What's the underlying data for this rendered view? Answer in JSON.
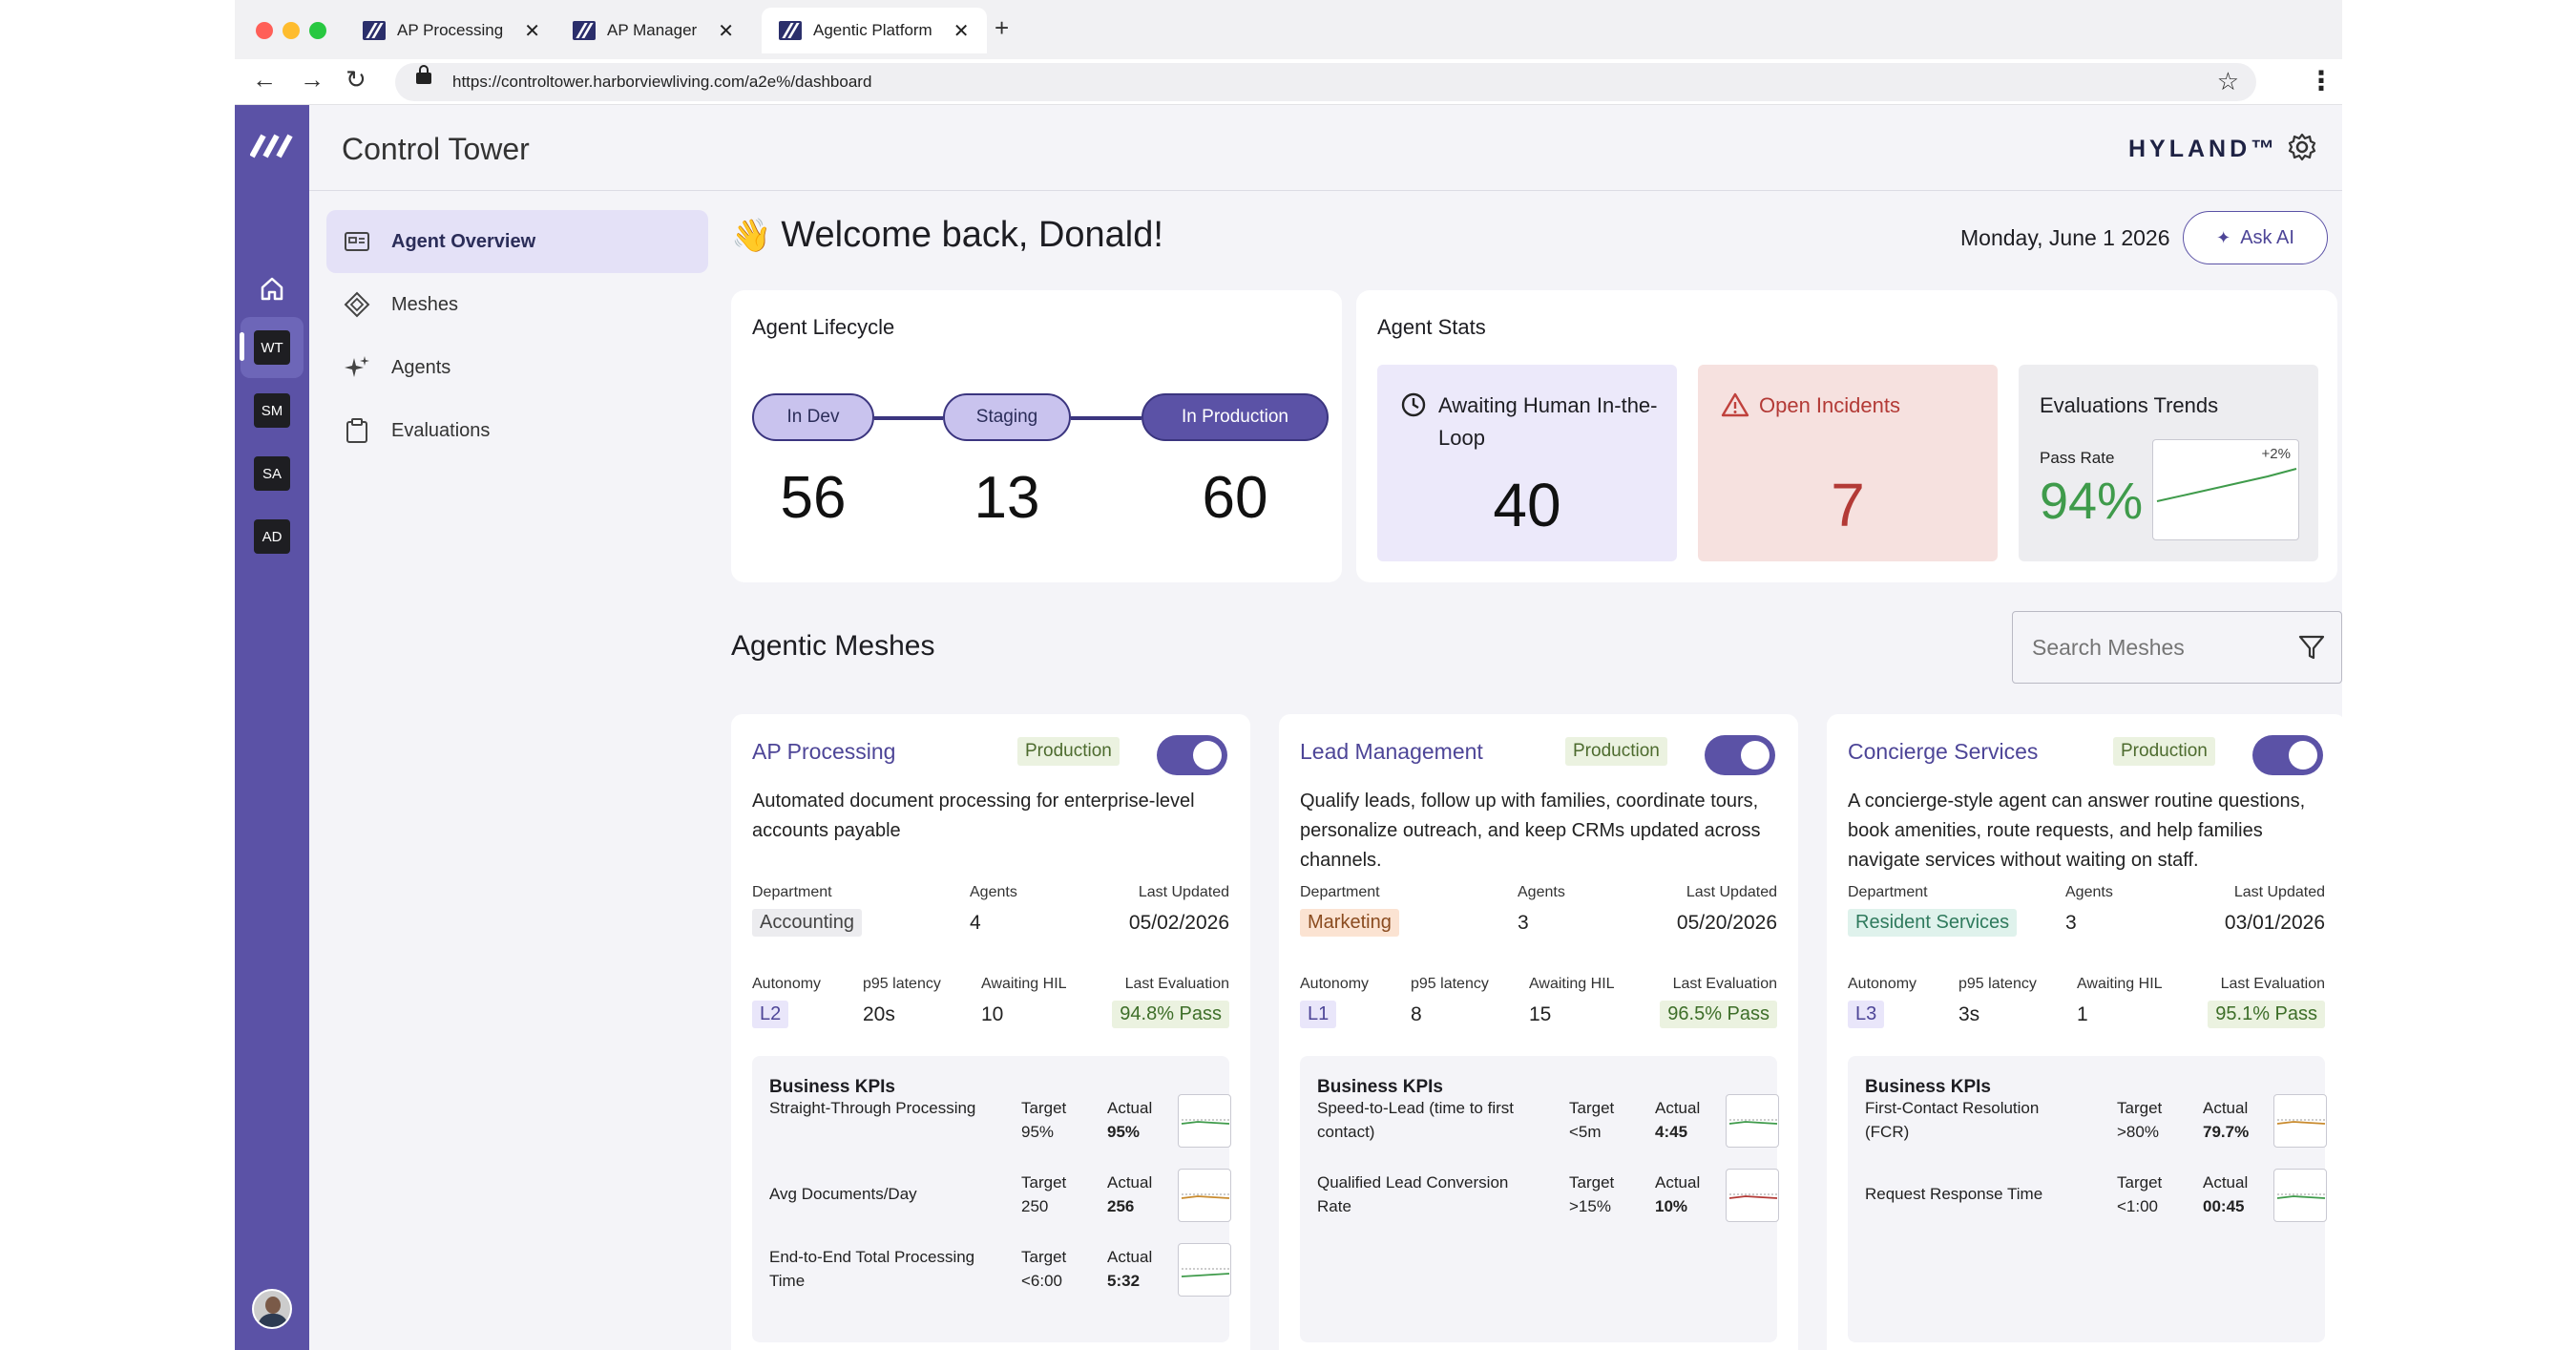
{
  "browser": {
    "tabs": [
      {
        "label": "AP Processing"
      },
      {
        "label": "AP Manager"
      },
      {
        "label": "Agentic Platform"
      }
    ],
    "url": "https://controltower.harborviewliving.com/a2e%/dashboard"
  },
  "rail": {
    "badges": [
      "WT",
      "SM",
      "SA",
      "AD"
    ]
  },
  "header": {
    "title": "Control Tower",
    "brand": "HYLAND™"
  },
  "subnav": {
    "items": [
      {
        "label": "Agent Overview",
        "icon": "dashboard-icon"
      },
      {
        "label": "Meshes",
        "icon": "mesh-icon"
      },
      {
        "label": "Agents",
        "icon": "sparkle-icon"
      },
      {
        "label": "Evaluations",
        "icon": "clipboard-icon"
      }
    ]
  },
  "main": {
    "welcome": "Welcome back, Donald!",
    "wave_emoji": "👋",
    "date": "Monday, June 1 2026",
    "ask_ai": "Ask AI"
  },
  "lifecycle": {
    "title": "Agent Lifecycle",
    "stages": [
      {
        "label": "In Dev",
        "count": "56"
      },
      {
        "label": "Staging",
        "count": "13"
      },
      {
        "label": "In Production",
        "count": "60"
      }
    ]
  },
  "stats": {
    "title": "Agent Stats",
    "awaiting": {
      "label": "Awaiting Human In-the-Loop",
      "value": "40"
    },
    "incidents": {
      "label": "Open Incidents",
      "value": "7"
    },
    "evaluations": {
      "label": "Evaluations Trends",
      "pass_label": "Pass Rate",
      "pass_value": "94%",
      "delta": "+2%"
    }
  },
  "meshes_section": {
    "title": "Agentic Meshes",
    "search_placeholder": "Search Meshes"
  },
  "labels": {
    "department": "Department",
    "agents": "Agents",
    "last_updated": "Last Updated",
    "autonomy": "Autonomy",
    "p95": "p95 latency",
    "awaiting_hil": "Awaiting HIL",
    "last_evaluation": "Last Evaluation",
    "business_kpis": "Business KPIs",
    "target": "Target",
    "actual": "Actual"
  },
  "meshes": [
    {
      "title": "AP Processing",
      "status": "Production",
      "description": "Automated document processing for enterprise-level accounts payable",
      "department": "Accounting",
      "agents": "4",
      "last_updated": "05/02/2026",
      "autonomy": "L2",
      "p95": "20s",
      "awaiting_hil": "10",
      "last_evaluation": "94.8% Pass",
      "kpis": [
        {
          "name": "Straight-Through Processing",
          "target": "95%",
          "actual": "95%"
        },
        {
          "name": "Avg Documents/Day",
          "target": "250",
          "actual": "256"
        },
        {
          "name": "End-to-End Total Processing Time",
          "target": "<6:00",
          "actual": "5:32"
        }
      ]
    },
    {
      "title": "Lead Management",
      "status": "Production",
      "description": "Qualify leads, follow up with families, coordinate tours, personalize outreach, and keep CRMs updated across channels.",
      "department": "Marketing",
      "agents": "3",
      "last_updated": "05/20/2026",
      "autonomy": "L1",
      "p95": "8",
      "awaiting_hil": "15",
      "last_evaluation": "96.5% Pass",
      "kpis": [
        {
          "name": "Speed-to-Lead (time to first contact)",
          "target": "<5m",
          "actual": "4:45"
        },
        {
          "name": "Qualified Lead Conversion Rate",
          "target": ">15%",
          "actual": "10%"
        }
      ]
    },
    {
      "title": "Concierge Services",
      "status": "Production",
      "description": "A concierge-style agent can answer routine questions, book amenities, route requests, and help families navigate services without waiting on staff.",
      "department": "Resident Services",
      "agents": "3",
      "last_updated": "03/01/2026",
      "autonomy": "L3",
      "p95": "3s",
      "awaiting_hil": "1",
      "last_evaluation": "95.1% Pass",
      "kpis": [
        {
          "name": "First-Contact Resolution (FCR)",
          "target": ">80%",
          "actual": "79.7%"
        },
        {
          "name": "Request Response Time",
          "target": "<1:00",
          "actual": "00:45"
        }
      ]
    }
  ],
  "colors": {
    "accent": "#5b52a6",
    "incident_bg": "#f6e1df",
    "incident_text": "#b33a36",
    "awaiting_bg": "#ece9fa",
    "pass_green": "#3f9b4b"
  }
}
